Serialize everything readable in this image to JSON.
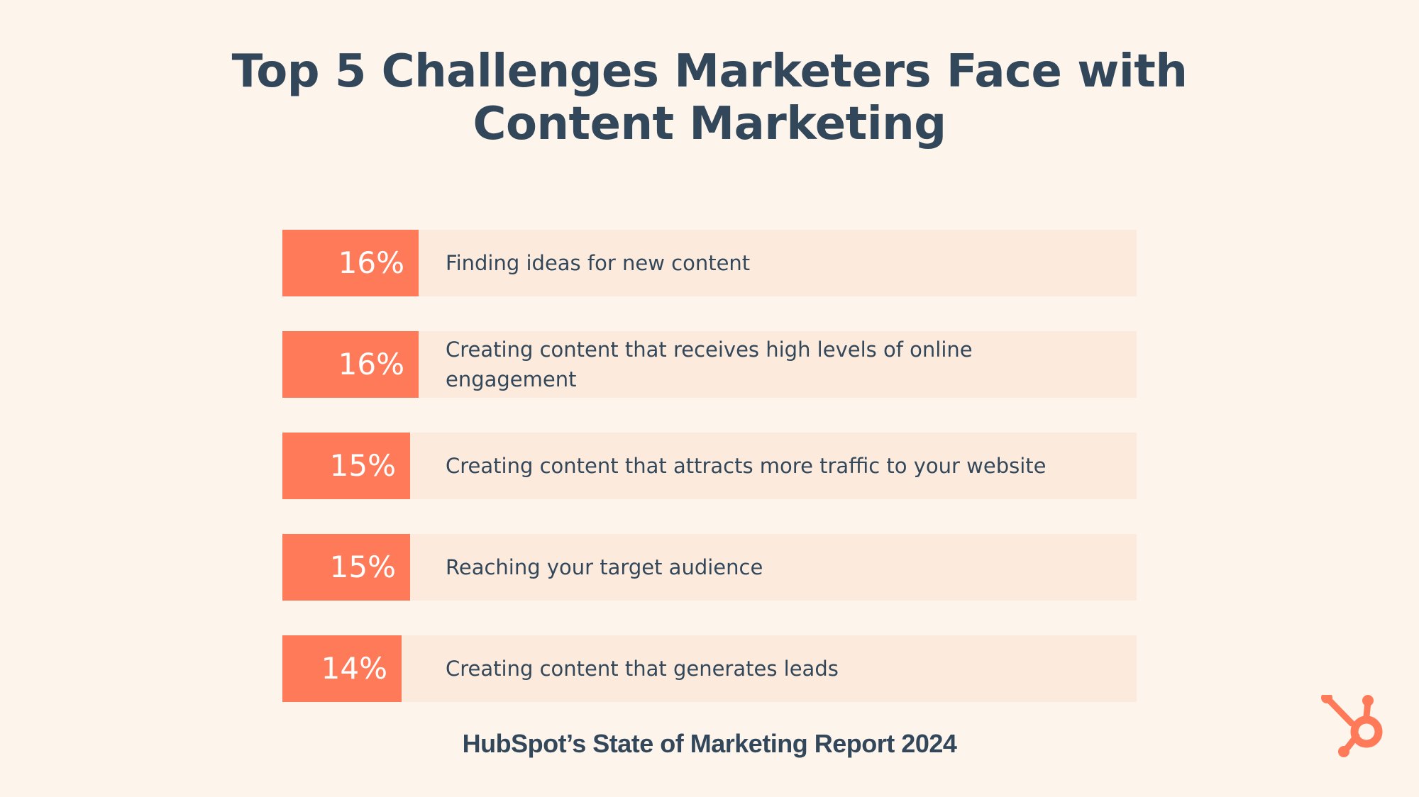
{
  "chart_data": {
    "type": "bar",
    "orientation": "horizontal",
    "title_lines": [
      "Top 5 Challenges Marketers Face with",
      "Content Marketing"
    ],
    "categories": [
      "Finding ideas for new content",
      "Creating content that receives high levels of online engagement",
      "Creating content that attracts more traffic to your website",
      "Reaching your target audience",
      "Creating content that generates leads"
    ],
    "values": [
      16,
      16,
      15,
      15,
      14
    ],
    "value_labels": [
      "16%",
      "16%",
      "15%",
      "15%",
      "14%"
    ],
    "colors": {
      "bar": "#ff7a59",
      "track": "#fcebdc",
      "background": "#fdf4ec",
      "text": "#33475b"
    }
  },
  "source": "HubSpot’s State of Marketing Report 2024",
  "logo": {
    "icon": "hubspot-sprocket-logo",
    "color": "#ff7a59"
  }
}
